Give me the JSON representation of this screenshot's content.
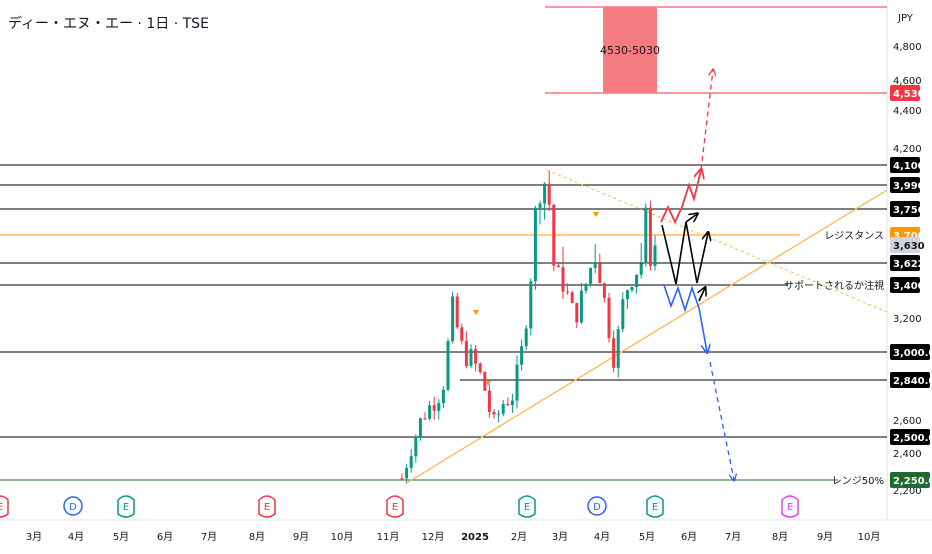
{
  "header": {
    "title": "ディー・エヌ・エー · 1日 · TSE",
    "currency": "JPY"
  },
  "chart_data": {
    "type": "candlestick",
    "title": "ディー・エヌ・エー · 1日 · TSE",
    "currency_label": "JPY",
    "x_axis_labels": [
      "3月",
      "4月",
      "5月",
      "6月",
      "7月",
      "8月",
      "9月",
      "10月",
      "11月",
      "12月",
      "2025",
      "2月",
      "3月",
      "4月",
      "5月",
      "6月",
      "7月",
      "8月",
      "9月",
      "10月"
    ],
    "price_scale_labels": [
      "4,800",
      "4,600",
      "4,400",
      "4,200",
      "3,200",
      "2,600",
      "2,400",
      "2,200"
    ],
    "yaxis_scale": "logarithmic",
    "horizontal_levels": [
      {
        "label": "4,530",
        "value": 4530,
        "color": "#f23645",
        "tag": ""
      },
      {
        "label": "4,100",
        "value": 4100,
        "color": "#000000",
        "tag": ""
      },
      {
        "label": "3,990",
        "value": 3990,
        "color": "#000000",
        "tag": ""
      },
      {
        "label": "3,756",
        "value": 3756,
        "color": "#000000",
        "tag": ""
      },
      {
        "label": "3,700",
        "value": 3700,
        "color": "#ff9800",
        "tag": "レジスタンス"
      },
      {
        "label": "3,630",
        "value": 3630,
        "color": "#d1d4dc",
        "tag": ""
      },
      {
        "label": "3,622",
        "value": 3622,
        "color": "#000000",
        "tag": ""
      },
      {
        "label": "3,400",
        "value": 3400,
        "color": "#000000",
        "tag": "サポートされるか注視"
      },
      {
        "label": "3,000.0",
        "value": 3000,
        "color": "#000000",
        "tag": ""
      },
      {
        "label": "2,840.0",
        "value": 2840,
        "color": "#000000",
        "tag": ""
      },
      {
        "label": "2,500.0",
        "value": 2500,
        "color": "#000000",
        "tag": ""
      },
      {
        "label": "2,250.0",
        "value": 2250,
        "color": "#1e6b2d",
        "tag": "レンジ50%"
      }
    ],
    "target_zone": {
      "label": "4530-5030",
      "low": 4530,
      "high": 5030,
      "color": "#f77c80"
    },
    "event_markers": [
      {
        "letter": "E",
        "kind": "earnings",
        "color": "#f23645",
        "month": "2024-02"
      },
      {
        "letter": "D",
        "kind": "dividend",
        "color": "#2962ff",
        "month": "2024-04"
      },
      {
        "letter": "E",
        "kind": "earnings",
        "color": "#089981",
        "month": "2024-05"
      },
      {
        "letter": "E",
        "kind": "earnings",
        "color": "#f23645",
        "month": "2024-08"
      },
      {
        "letter": "E",
        "kind": "earnings",
        "color": "#f23645",
        "month": "2024-11"
      },
      {
        "letter": "E",
        "kind": "earnings",
        "color": "#089981",
        "month": "2025-02"
      },
      {
        "letter": "D",
        "kind": "dividend",
        "color": "#2962ff",
        "month": "2025-04"
      },
      {
        "letter": "E",
        "kind": "earnings",
        "color": "#089981",
        "month": "2025-05"
      },
      {
        "letter": "E",
        "kind": "earnings",
        "color": "#e040fb",
        "month": "2025-08"
      }
    ],
    "price_path": [
      {
        "month": "2024-11",
        "price": 2260
      },
      {
        "month": "2024-11",
        "price": 2450
      },
      {
        "month": "2024-12",
        "price": 2620
      },
      {
        "month": "2024-12",
        "price": 2700
      },
      {
        "month": "2024-12",
        "price": 2780
      },
      {
        "month": "2024-12",
        "price": 3250
      },
      {
        "month": "2024-12",
        "price": 3000
      },
      {
        "month": "2025-01",
        "price": 2950
      },
      {
        "month": "2025-01",
        "price": 2830
      },
      {
        "month": "2025-01",
        "price": 2560
      },
      {
        "month": "2025-01",
        "price": 2700
      },
      {
        "month": "2025-02",
        "price": 2750
      },
      {
        "month": "2025-02",
        "price": 3050
      },
      {
        "month": "2025-02",
        "price": 3650
      },
      {
        "month": "2025-02",
        "price": 4050
      },
      {
        "month": "2025-03",
        "price": 3600
      },
      {
        "month": "2025-03",
        "price": 3400
      },
      {
        "month": "2025-03",
        "price": 3200
      },
      {
        "month": "2025-03",
        "price": 3350
      },
      {
        "month": "2025-04",
        "price": 3700
      },
      {
        "month": "2025-04",
        "price": 3300
      },
      {
        "month": "2025-04",
        "price": 2950
      },
      {
        "month": "2025-04",
        "price": 3350
      },
      {
        "month": "2025-05",
        "price": 3500
      },
      {
        "month": "2025-05",
        "price": 3700
      },
      {
        "month": "2025-05",
        "price": 3630
      }
    ]
  }
}
